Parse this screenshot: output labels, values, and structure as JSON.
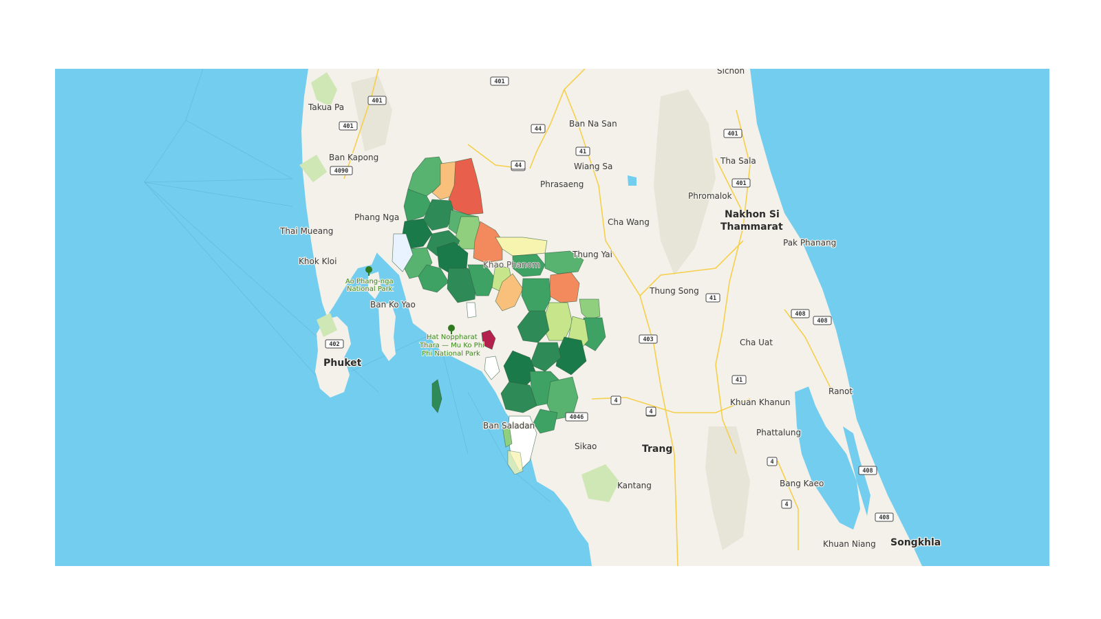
{
  "map": {
    "places": [
      {
        "id": "sichon",
        "label": "Sichon",
        "major": false
      },
      {
        "id": "takua-pa",
        "label": "Takua Pa",
        "major": false
      },
      {
        "id": "ban-na-san",
        "label": "Ban Na San",
        "major": false
      },
      {
        "id": "ban-kapong",
        "label": "Ban Kapong",
        "major": false
      },
      {
        "id": "wiang-sa",
        "label": "Wiang Sa",
        "major": false
      },
      {
        "id": "tha-sala",
        "label": "Tha Sala",
        "major": false
      },
      {
        "id": "phrasaeng",
        "label": "Phrasaeng",
        "major": false
      },
      {
        "id": "phromalok",
        "label": "Phromalok",
        "major": false
      },
      {
        "id": "phang-nga",
        "label": "Phang Nga",
        "major": false
      },
      {
        "id": "nakhon-si-1",
        "label": "Nakhon Si",
        "major": true
      },
      {
        "id": "nakhon-si-2",
        "label": "Thammarat",
        "major": true
      },
      {
        "id": "cha-wang",
        "label": "Cha Wang",
        "major": false
      },
      {
        "id": "thai-mueang",
        "label": "Thai Mueang",
        "major": false
      },
      {
        "id": "pak-phanang",
        "label": "Pak Phanang",
        "major": false
      },
      {
        "id": "thung-yai",
        "label": "Thung Yai",
        "major": false
      },
      {
        "id": "khok-kloi",
        "label": "Khok Kloi",
        "major": false
      },
      {
        "id": "khao-phanom",
        "label": "Khao Phanom",
        "major": false
      },
      {
        "id": "thung-song",
        "label": "Thung Song",
        "major": false
      },
      {
        "id": "ban-ko-yao",
        "label": "Ban Ko Yao",
        "major": false
      },
      {
        "id": "cha-uat",
        "label": "Cha Uat",
        "major": false
      },
      {
        "id": "phuket",
        "label": "Phuket",
        "major": true
      },
      {
        "id": "ranot",
        "label": "Ranot",
        "major": false
      },
      {
        "id": "khuan-khanun",
        "label": "Khuan Khanun",
        "major": false
      },
      {
        "id": "ban-saladan",
        "label": "Ban Saladan",
        "major": false
      },
      {
        "id": "phattalung",
        "label": "Phattalung",
        "major": false
      },
      {
        "id": "sikao",
        "label": "Sikao",
        "major": false
      },
      {
        "id": "trang",
        "label": "Trang",
        "major": true
      },
      {
        "id": "kantang",
        "label": "Kantang",
        "major": false
      },
      {
        "id": "bang-kaeo",
        "label": "Bang Kaeo",
        "major": false
      },
      {
        "id": "songkhla",
        "label": "Songkhla",
        "major": true
      },
      {
        "id": "khuan-niang",
        "label": "Khuan Niang",
        "major": false
      }
    ],
    "parks": [
      {
        "id": "ao-phang-nga",
        "lines": [
          "Ao Phang-nga",
          "National Park"
        ]
      },
      {
        "id": "hat-noppharat",
        "lines": [
          "Hat Noppharat",
          "Thara — Mu Ko Phi",
          "Phi National Park"
        ]
      }
    ],
    "road_shields": [
      "401",
      "401",
      "401",
      "401",
      "401",
      "4090",
      "44",
      "44",
      "41",
      "44",
      "4",
      "41",
      "403",
      "408",
      "408",
      "41",
      "4",
      "4",
      "4046",
      "4",
      "408",
      "4",
      "408",
      "402"
    ],
    "colors": {
      "water": "#73cdef",
      "land": "#f3f1ea",
      "park": "#cfe6b5",
      "road": "#f6cf4a",
      "choropleth_scale": [
        "#1b7a4a",
        "#2e8b57",
        "#3fa265",
        "#57b36f",
        "#8fcf7e",
        "#c7e68b",
        "#f7f4b0",
        "#f8c07a",
        "#f38a5e",
        "#e8604c",
        "#b5214d",
        "#ffffff"
      ]
    }
  }
}
